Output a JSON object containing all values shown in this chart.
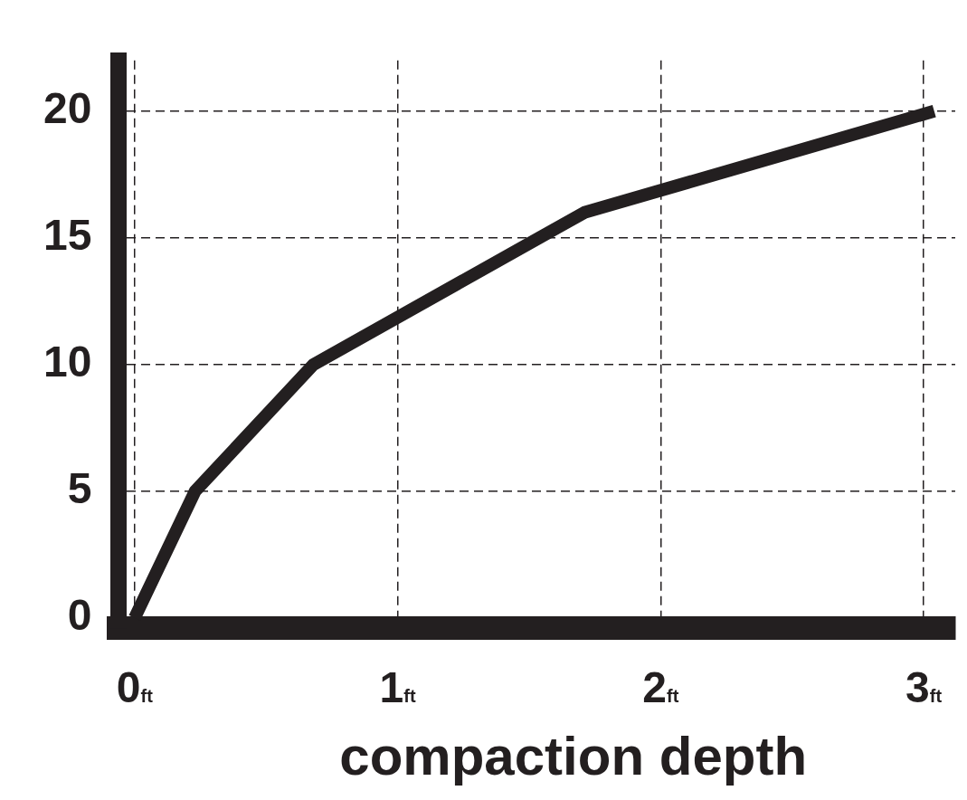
{
  "chart_data": {
    "type": "line",
    "xlabel": "compaction depth",
    "x": [
      0,
      0.23,
      0.68,
      1.71,
      3.04
    ],
    "series": [
      {
        "color": "#231f20",
        "values": [
          0,
          5,
          10,
          16,
          20
        ]
      }
    ],
    "xlim": [
      -0.06,
      3.12
    ],
    "ylim": [
      -0.4,
      22
    ],
    "xticks": [
      {
        "value": 0,
        "label": "0$_{ft}$"
      },
      {
        "value": 1,
        "label": "1$_{ft}$"
      },
      {
        "value": 2,
        "label": "2$_{ft}$"
      },
      {
        "value": 3,
        "label": "3$_{ft}$"
      }
    ],
    "yticks": [
      0,
      5,
      10,
      15,
      20
    ],
    "grid": true,
    "legend": false,
    "marker": "none",
    "line_style": "solid"
  }
}
